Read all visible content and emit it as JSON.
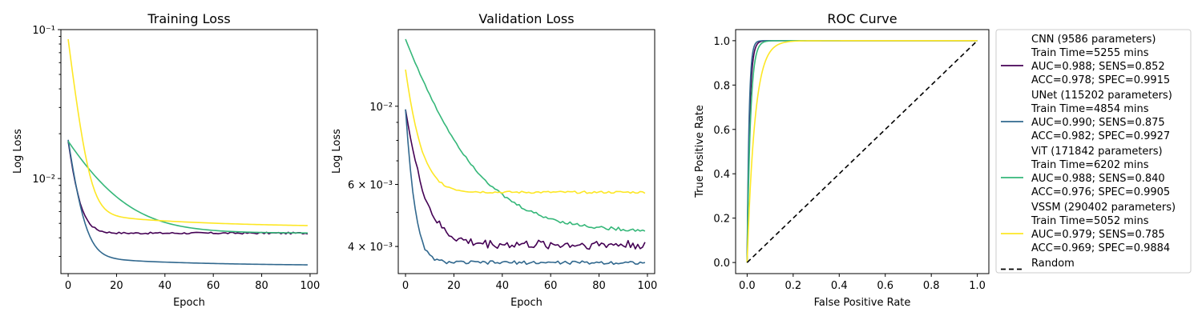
{
  "colors": {
    "CNN": "#440154",
    "UNet": "#31688e",
    "ViT": "#35b779",
    "VSSM": "#fde725",
    "Random": "#000000"
  },
  "chart_data": [
    {
      "type": "line",
      "title": "Training Loss",
      "xlabel": "Epoch",
      "ylabel": "Log Loss",
      "yscale": "log",
      "xlim": [
        -3,
        103
      ],
      "ylim": [
        0.0023,
        0.1
      ],
      "xticks": [
        0,
        20,
        40,
        60,
        80,
        100
      ],
      "xtick_labels": [
        "0",
        "20",
        "40",
        "60",
        "80",
        "100"
      ],
      "yticks": [
        0.01,
        0.1
      ],
      "ytick_labels": [
        "10⁻²",
        "10⁻¹"
      ],
      "series": [
        {
          "name": "CNN",
          "start": 0.0178,
          "floor": 0.0043,
          "decay": 3.0,
          "noise": 6e-05
        },
        {
          "name": "UNet",
          "start": 0.0178,
          "floor": 0.0026,
          "decay": 3.5,
          "drift": 0.0004
        },
        {
          "name": "ViT",
          "start": 0.0178,
          "floor": 0.0043,
          "decay": 14.0
        },
        {
          "name": "VSSM",
          "start": 0.085,
          "floor": 0.0047,
          "decay": 3.2,
          "mid": 0.0012
        }
      ]
    },
    {
      "type": "line",
      "title": "Validation Loss",
      "xlabel": "Epoch",
      "ylabel": "Log Loss",
      "yscale": "log",
      "xlim": [
        -3,
        103
      ],
      "ylim": [
        0.00335,
        0.0165
      ],
      "xticks": [
        0,
        20,
        40,
        60,
        80,
        100
      ],
      "xtick_labels": [
        "0",
        "20",
        "40",
        "60",
        "80",
        "100"
      ],
      "yticks": [
        0.004,
        0.006,
        0.01
      ],
      "ytick_labels": [
        "4 × 10⁻³",
        "6 × 10⁻³",
        "10⁻²"
      ],
      "series": [
        {
          "name": "CNN",
          "start": 0.0098,
          "floor": 0.00405,
          "decay": 6.0,
          "noise": 0.00012
        },
        {
          "name": "UNet",
          "start": 0.0098,
          "floor": 0.0036,
          "decay": 2.8,
          "noise": 4e-05
        },
        {
          "name": "ViT",
          "start": 0.0155,
          "floor": 0.0044,
          "decay": 18.0,
          "noise": 5e-05
        },
        {
          "name": "VSSM",
          "start": 0.0127,
          "floor": 0.0057,
          "decay": 5.0,
          "noise": 4e-05
        }
      ]
    },
    {
      "type": "line",
      "title": "ROC Curve",
      "xlabel": "False Positive Rate",
      "ylabel": "True Positive Rate",
      "xlim": [
        -0.05,
        1.05
      ],
      "ylim": [
        -0.05,
        1.05
      ],
      "xticks": [
        0,
        0.2,
        0.4,
        0.6,
        0.8,
        1.0
      ],
      "xtick_labels": [
        "0.0",
        "0.2",
        "0.4",
        "0.6",
        "0.8",
        "1.0"
      ],
      "yticks": [
        0,
        0.2,
        0.4,
        0.6,
        0.8,
        1.0
      ],
      "ytick_labels": [
        "0.0",
        "0.2",
        "0.4",
        "0.6",
        "0.8",
        "1.0"
      ],
      "series": [
        {
          "name": "CNN",
          "k": 95
        },
        {
          "name": "UNet",
          "k": 120
        },
        {
          "name": "ViT",
          "k": 70
        },
        {
          "name": "VSSM",
          "k": 30
        },
        {
          "name": "Random",
          "x": [
            0,
            1
          ],
          "y": [
            0,
            1
          ],
          "dashed": true
        }
      ],
      "legend": {
        "placement": "outside-right",
        "entries": [
          {
            "name": "CNN",
            "lines": [
              "CNN (9586 parameters)",
              "Train Time=5255 mins",
              "AUC=0.988; SENS=0.852",
              "ACC=0.978; SPEC=0.9915"
            ]
          },
          {
            "name": "UNet",
            "lines": [
              "UNet (115202 parameters)",
              "Train Time=4854 mins",
              "AUC=0.990; SENS=0.875",
              "ACC=0.982; SPEC=0.9927"
            ]
          },
          {
            "name": "ViT",
            "lines": [
              "ViT (171842 parameters)",
              "Train Time=6202 mins",
              "AUC=0.988; SENS=0.840",
              "ACC=0.976; SPEC=0.9905"
            ]
          },
          {
            "name": "VSSM",
            "lines": [
              "VSSM (290402 parameters)",
              "Train Time=5052 mins",
              "AUC=0.979; SENS=0.785",
              "ACC=0.969; SPEC=0.9884"
            ]
          },
          {
            "name": "Random",
            "lines": [
              "Random"
            ]
          }
        ]
      }
    }
  ]
}
